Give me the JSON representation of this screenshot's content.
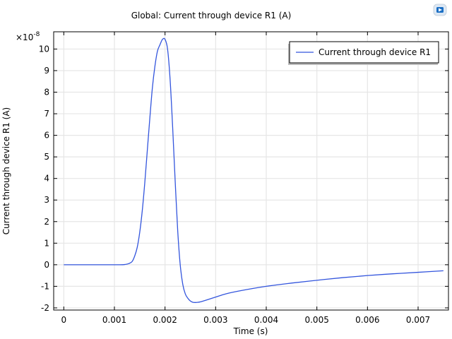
{
  "chart_data": {
    "type": "line",
    "title": "Global: Current through device R1 (A)",
    "xlabel": "Time (s)",
    "ylabel": "Current through device R1 (A)",
    "y_multiplier": "×10",
    "y_multiplier_exp": "-8",
    "xlim": [
      -0.0002,
      0.0076
    ],
    "ylim": [
      -2.1,
      10.8
    ],
    "x_ticks": [
      0,
      0.001,
      0.002,
      0.003,
      0.004,
      0.005,
      0.006,
      0.007
    ],
    "x_tick_labels": [
      "0",
      "0.001",
      "0.002",
      "0.003",
      "0.004",
      "0.005",
      "0.006",
      "0.007"
    ],
    "y_ticks": [
      -2,
      -1,
      0,
      1,
      2,
      3,
      4,
      5,
      6,
      7,
      8,
      9,
      10
    ],
    "y_tick_labels": [
      "-2",
      "-1",
      "0",
      "1",
      "2",
      "3",
      "4",
      "5",
      "6",
      "7",
      "8",
      "9",
      "10"
    ],
    "grid": true,
    "legend_position": "top-right",
    "series": [
      {
        "name": "Current through device R1",
        "color": "#3355dd",
        "x": [
          0,
          0.0006,
          0.0011,
          0.0012,
          0.00128,
          0.00135,
          0.0014,
          0.00145,
          0.0015,
          0.00155,
          0.0016,
          0.00165,
          0.0017,
          0.00175,
          0.0018,
          0.00185,
          0.0019,
          0.00195,
          0.002,
          0.00205,
          0.0021,
          0.00215,
          0.0022,
          0.00225,
          0.0023,
          0.00235,
          0.0024,
          0.00245,
          0.0025,
          0.00255,
          0.0026,
          0.00265,
          0.0027,
          0.0028,
          0.003,
          0.0032,
          0.0035,
          0.004,
          0.0045,
          0.005,
          0.0055,
          0.006,
          0.0065,
          0.007,
          0.0075
        ],
        "y": [
          0,
          0,
          0,
          0.01,
          0.05,
          0.15,
          0.4,
          0.8,
          1.5,
          2.5,
          3.8,
          5.3,
          6.8,
          8.2,
          9.2,
          9.9,
          10.2,
          10.45,
          10.45,
          10.0,
          8.6,
          6.4,
          3.9,
          1.6,
          0.0,
          -0.9,
          -1.35,
          -1.55,
          -1.68,
          -1.74,
          -1.75,
          -1.74,
          -1.72,
          -1.65,
          -1.5,
          -1.35,
          -1.2,
          -1.0,
          -0.85,
          -0.72,
          -0.6,
          -0.5,
          -0.42,
          -0.35,
          -0.28
        ]
      }
    ]
  },
  "icons": {
    "logo": "app-logo-icon"
  }
}
